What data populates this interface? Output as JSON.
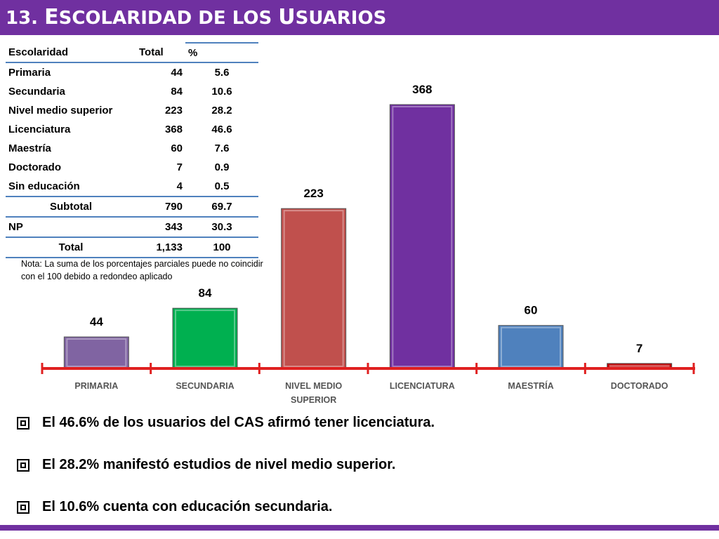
{
  "title": {
    "number": "13.",
    "text": "Escolaridad de los Usuarios"
  },
  "table": {
    "headers": [
      "Escolaridad",
      "Total",
      "%"
    ],
    "rows": [
      [
        "Primaria",
        "44",
        "5.6"
      ],
      [
        "Secundaria",
        "84",
        "10.6"
      ],
      [
        "Nivel medio superior",
        "223",
        "28.2"
      ],
      [
        "Licenciatura",
        "368",
        "46.6"
      ],
      [
        "Maestría",
        "60",
        "7.6"
      ],
      [
        "Doctorado",
        "7",
        "0.9"
      ],
      [
        "Sin educación",
        "4",
        "0.5"
      ]
    ],
    "subtotal": [
      "Subtotal",
      "790",
      "69.7"
    ],
    "np": [
      "NP",
      "343",
      "30.3"
    ],
    "total": [
      "Total",
      "1,133",
      "100"
    ]
  },
  "note": "Nota: La suma de los porcentajes parciales puede no coincidir con el 100 debido a redondeo aplicado",
  "chart_data": {
    "type": "bar",
    "categories": [
      "PRIMARIA",
      "SECUNDARIA",
      "NIVEL MEDIO SUPERIOR",
      "LICENCIATURA",
      "MAESTRÍA",
      "DOCTORADO"
    ],
    "values": [
      44,
      84,
      223,
      368,
      60,
      7
    ],
    "data_labels": [
      "44",
      "84",
      "223",
      "368",
      "60",
      "7"
    ],
    "colors": [
      "#8064a2",
      "#00b050",
      "#c0504d",
      "#7030a0",
      "#4f81bd",
      "#c00000"
    ],
    "axis_color": "#e02020",
    "ylim": [
      0,
      380
    ],
    "grid": false,
    "legend": "none"
  },
  "bullets": [
    "El 46.6% de los usuarios del CAS afirmó tener licenciatura.",
    "El 28.2% manifestó estudios de nivel medio superior.",
    "El 10.6% cuenta con educación secundaria."
  ]
}
